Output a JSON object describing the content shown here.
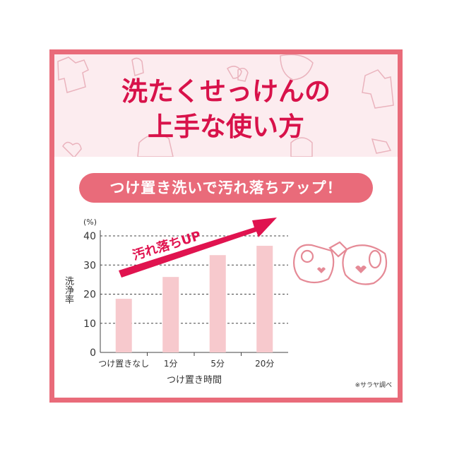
{
  "header": {
    "title_line1": "洗たくせっけんの",
    "title_line2": "上手な使い方"
  },
  "banner": {
    "text": "つけ置き洗いで汚れ落ちアップ！"
  },
  "note": "※サラヤ調べ",
  "colors": {
    "frame": "#e96b7a",
    "title": "#d8124a",
    "bar": "#f7c9cd",
    "arrow": "#e0134f"
  },
  "chart_data": {
    "type": "bar",
    "categories": [
      "つけ置きなし",
      "1分",
      "5分",
      "20分"
    ],
    "values": [
      18.4,
      25.9,
      33.4,
      36.6
    ],
    "ylim": [
      0,
      40
    ],
    "yticks": [
      0,
      10,
      20,
      30,
      40
    ],
    "yunit": "(%)",
    "ylabel": "洗浄率",
    "xlabel": "つけ置き時間",
    "grid": true,
    "annotation": "汚れ落ちUP"
  }
}
